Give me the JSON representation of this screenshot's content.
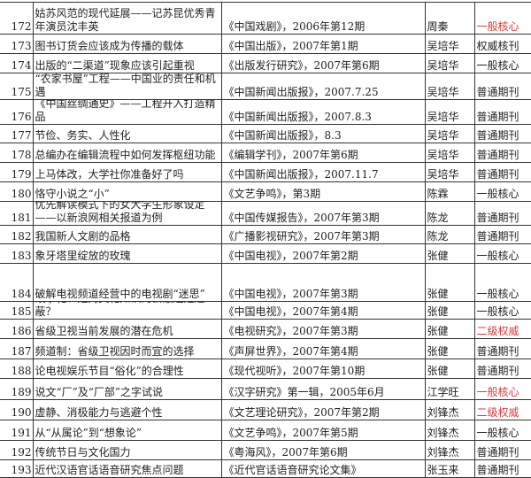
{
  "rows": [
    {
      "no": "172",
      "title": "姑苏风范的现代延展——记苏昆优秀青年演员沈丰英",
      "source": "《中国戏剧》，2006年第12期",
      "author": "周秦",
      "level": "一般核心",
      "red": true
    },
    {
      "no": "173",
      "title": "图书订货会应该成为传播的载体",
      "source": "《中国出版》，2007年第1期",
      "author": "吴培华",
      "level": "权威核刊",
      "red": false
    },
    {
      "no": "174",
      "title": "出版的“二渠道”现象应该引起重视",
      "source": "《出版发行研究》，2007年第6期",
      "author": "吴培华",
      "level": "一般核心",
      "red": false
    },
    {
      "no": "175",
      "title": "“农家书屋”工程——中国业的责任和机遇",
      "source": "《中国新闻出版报》，2007.7.25",
      "author": "吴培华",
      "level": "普通期刊",
      "red": false
    },
    {
      "no": "176",
      "title": "《中国丝绸通史》——工程开入打造精品",
      "source": "《中国新闻出版报》，2007.8.3",
      "author": "吴培华",
      "level": "普通期刊",
      "red": false
    },
    {
      "no": "177",
      "title": "节俭、务实、人性化",
      "source": "《中国新闻出版报》，8.3",
      "author": "吴培华",
      "level": "普通期刊",
      "red": false
    },
    {
      "no": "178",
      "title": "总编办在编辑流程中如何发挥枢纽功能",
      "source": "《编辑学刊》，2007年第6期",
      "author": "吴培华",
      "level": "普通期刊",
      "red": false
    },
    {
      "no": "179",
      "title": "上马体改，大学社你准备好了吗",
      "source": "《中国新闻出版报》，2007.11.7",
      "author": "吴培华",
      "level": "普通期刊",
      "red": false
    },
    {
      "no": "180",
      "title": "恪守小说之“小”",
      "source": "《文艺争鸣》，第3期",
      "author": "陈霖",
      "level": "一般核心",
      "red": false
    },
    {
      "no": "181",
      "title": "优先解读模式下的女大学生形象设定——以新浪网相关报道为例",
      "source": "《中国传媒报告》，2007年第3期",
      "author": "陈龙",
      "level": "普通期刊",
      "red": false
    },
    {
      "no": "182",
      "title": "我国新人文剧的品格",
      "source": "《广播影视研究》，2007年第3期",
      "author": "陈龙",
      "level": "普通期刊",
      "red": false
    },
    {
      "no": "183",
      "title": "象牙塔里绽放的玫瑰",
      "source": "《中国电视》，2007年第2期",
      "author": "张健",
      "level": "一般核心",
      "red": false
    },
    {
      "no": "184",
      "title": "破解电视频道经营中的电视剧“迷思”",
      "source": "《中国电视》，2007年第3期",
      "author": "张健",
      "level": "一般核心",
      "red": false
    },
    {
      "no": "185",
      "title": "故事化：是对文化知识的去蔽还是遮蔽？",
      "source": "《中国电视》，2007年第4期",
      "author": "张健",
      "level": "一般核心",
      "red": false
    },
    {
      "no": "186",
      "title": "省级卫视当前发展的潜在危机",
      "source": "《电视研究》，2007年第3期",
      "author": "张健",
      "level": "二级权威",
      "red": true
    },
    {
      "no": "187",
      "title": "频道制：省级卫视因时而宜的选择",
      "source": "《声屏世界》，2007年第4期",
      "author": "张健",
      "level": "普通期刊",
      "red": false
    },
    {
      "no": "188",
      "title": "论电视娱乐节目“俗化”的合理性",
      "source": "《现代视听》，2007年第10期",
      "author": "张健",
      "level": "普通期刊",
      "red": false
    },
    {
      "no": "189",
      "title": "说文“厂”及“厂部”之字试说",
      "source": "《汉字研究》第一辑，2005年6月",
      "author": "江学旺",
      "level": "一般核心",
      "red": true
    },
    {
      "no": "190",
      "title": "虚静、消极能力与逃避个性",
      "source": "《文艺理论研究》，2007年第2期",
      "author": "刘锋杰",
      "level": "二级权威",
      "red": true
    },
    {
      "no": "191",
      "title": "从“从属论”到“想象论”",
      "source": "《文艺争鸣》，2007年第5期",
      "author": "刘锋杰",
      "level": "一般核心",
      "red": false
    },
    {
      "no": "192",
      "title": "传统节日与文化国力",
      "source": "《粤海风》，2007年第6期",
      "author": "刘锋杰",
      "level": "普通期刊",
      "red": false
    },
    {
      "no": "193",
      "title": "近代汉语官话语音研究焦点问题",
      "source": "《近代官话语音研究论文集》",
      "author": "张玉来",
      "level": "普通期刊",
      "red": false
    }
  ],
  "colors": {
    "highlight": "#e23a3a",
    "border": "#333333"
  }
}
